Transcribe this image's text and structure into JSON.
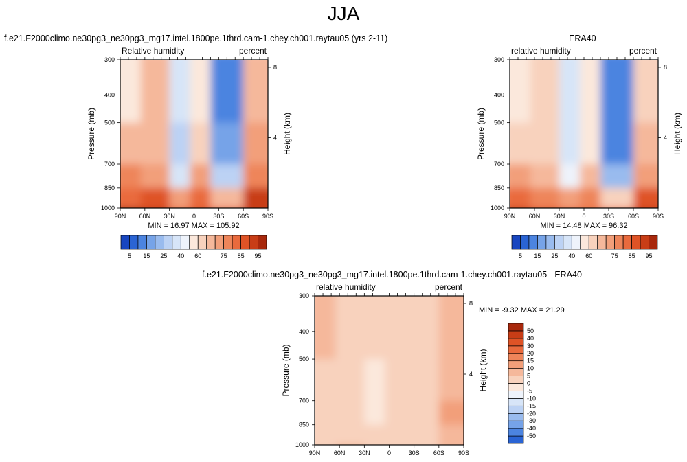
{
  "page": {
    "title": "JJA"
  },
  "colors": {
    "warm": [
      "#fbe8dc",
      "#f8d2bd",
      "#f5b89b",
      "#f29f7a",
      "#ee855a",
      "#e96a3d",
      "#df5326",
      "#c83d16",
      "#a8280c",
      "#7d1306"
    ],
    "cool": [
      "#eef3fb",
      "#d7e5f8",
      "#bcd2f4",
      "#99bbee",
      "#76a3e8",
      "#4c84e0",
      "#2a64d4",
      "#1846c0",
      "#0e2fa0",
      "#061e78"
    ],
    "neutral": "#fdf2ea"
  },
  "chart_data": [
    {
      "type": "heatmap",
      "id": "model",
      "title": "f.e21.F2000climo.ne30pg3_ne30pg3_mg17.intel.1800pe.1thrd.cam-1.chey.ch001.raytau05 (yrs 2-11)",
      "field_label": "Relative humidity",
      "units_label": "percent",
      "ylabel": "Pressure (mb)",
      "y2label": "Height (km)",
      "x_ticks": [
        "90N",
        "60N",
        "30N",
        "0",
        "30S",
        "60S",
        "90S"
      ],
      "x_values": [
        90,
        60,
        30,
        0,
        -30,
        -60,
        -90
      ],
      "y_ticks": [
        300,
        400,
        500,
        700,
        850,
        1000
      ],
      "height_ticks": [
        8,
        4
      ],
      "stats": "MIN =  16.97  MAX = 105.92",
      "contour_levels": [
        5,
        10,
        15,
        20,
        25,
        30,
        40,
        50,
        60,
        65,
        70,
        75,
        80,
        85,
        90,
        95
      ],
      "colorbar_labels": [
        "5",
        "15",
        "25",
        "40",
        "60",
        "75",
        "85",
        "95"
      ],
      "zones": [
        {
          "lat": 90,
          "values": {
            "300": 60,
            "500": 70,
            "700": 78,
            "850": 85,
            "1000": 100
          }
        },
        {
          "lat": 65,
          "values": {
            "300": 70,
            "500": 70,
            "700": 75,
            "850": 88,
            "1000": 92
          }
        },
        {
          "lat": 30,
          "values": {
            "300": 35,
            "500": 30,
            "700": 40,
            "850": 75,
            "1000": 85
          }
        },
        {
          "lat": 5,
          "values": {
            "300": 60,
            "500": 65,
            "700": 75,
            "850": 85,
            "1000": 88
          }
        },
        {
          "lat": -20,
          "values": {
            "300": 15,
            "500": 18,
            "700": 30,
            "850": 70,
            "1000": 88
          }
        },
        {
          "lat": -60,
          "values": {
            "300": 70,
            "500": 75,
            "700": 80,
            "850": 92,
            "1000": 95
          }
        }
      ]
    },
    {
      "type": "heatmap",
      "id": "obs",
      "title": "ERA40",
      "field_label": "relative humidity",
      "units_label": "percent",
      "ylabel": "Pressure (mb)",
      "y2label": "Height (km)",
      "x_ticks": [
        "90N",
        "60N",
        "30N",
        "0",
        "30S",
        "60S",
        "90S"
      ],
      "x_values": [
        90,
        60,
        30,
        0,
        -30,
        -60,
        -90
      ],
      "y_ticks": [
        300,
        400,
        500,
        700,
        850,
        1000
      ],
      "height_ticks": [
        8,
        4
      ],
      "stats": "MIN =  14.48  MAX =  96.32",
      "contour_levels": [
        5,
        10,
        15,
        20,
        25,
        30,
        40,
        50,
        60,
        65,
        70,
        75,
        80,
        85,
        90,
        95
      ],
      "colorbar_labels": [
        "5",
        "15",
        "25",
        "40",
        "60",
        "75",
        "85",
        "95"
      ],
      "zones": [
        {
          "lat": 90,
          "values": {
            "300": 55,
            "500": 65,
            "700": 75,
            "850": 85,
            "1000": 95
          }
        },
        {
          "lat": 65,
          "values": {
            "300": 62,
            "500": 65,
            "700": 70,
            "850": 80,
            "1000": 88
          }
        },
        {
          "lat": 30,
          "values": {
            "300": 35,
            "500": 40,
            "700": 45,
            "850": 72,
            "1000": 82
          }
        },
        {
          "lat": 5,
          "values": {
            "300": 55,
            "500": 60,
            "700": 70,
            "850": 80,
            "1000": 85
          }
        },
        {
          "lat": -20,
          "values": {
            "300": 12,
            "500": 15,
            "700": 25,
            "850": 65,
            "1000": 82
          }
        },
        {
          "lat": -60,
          "values": {
            "300": 62,
            "500": 68,
            "700": 75,
            "850": 88,
            "1000": 92
          }
        }
      ]
    },
    {
      "type": "heatmap",
      "id": "diff",
      "title": "f.e21.F2000climo.ne30pg3_ne30pg3_mg17.intel.1800pe.1thrd.cam-1.chey.ch001.raytau05 - ERA40",
      "field_label": "relative humidity",
      "units_label": "percent",
      "ylabel": "Pressure (mb)",
      "y2label": "Height (km)",
      "x_ticks": [
        "90N",
        "60N",
        "30N",
        "0",
        "30S",
        "60S",
        "90S"
      ],
      "x_values": [
        90,
        60,
        30,
        0,
        -30,
        -60,
        -90
      ],
      "y_ticks": [
        300,
        400,
        500,
        700,
        850,
        1000
      ],
      "height_ticks": [
        8,
        4
      ],
      "stats": "MIN = -9.32  MAX =  21.29",
      "contour_levels": [
        -50,
        -40,
        -30,
        -20,
        -15,
        -10,
        -5,
        0,
        5,
        10,
        15,
        20,
        30,
        40,
        50
      ],
      "colorbar_labels": [
        "50",
        "40",
        "30",
        "20",
        "15",
        "10",
        "5",
        "0",
        "-5",
        "-10",
        "-15",
        "-20",
        "-30",
        "-40",
        "-50"
      ],
      "zones": [
        {
          "lat": 90,
          "values": {
            "300": 6,
            "500": 4,
            "700": 3,
            "850": 2,
            "1000": 4
          }
        },
        {
          "lat": 65,
          "values": {
            "300": 5,
            "500": 4,
            "700": 3,
            "850": 5,
            "1000": 6
          }
        },
        {
          "lat": 30,
          "values": {
            "300": 2,
            "500": -3,
            "700": -3,
            "850": 2,
            "1000": 4
          }
        },
        {
          "lat": 5,
          "values": {
            "300": 4,
            "500": 3,
            "700": 2,
            "850": 3,
            "1000": 3
          }
        },
        {
          "lat": -20,
          "values": {
            "300": 3,
            "500": 3,
            "700": 4,
            "850": 4,
            "1000": 5
          }
        },
        {
          "lat": -60,
          "values": {
            "300": 10,
            "500": 8,
            "700": 12,
            "850": 10,
            "1000": 7
          }
        }
      ]
    }
  ]
}
